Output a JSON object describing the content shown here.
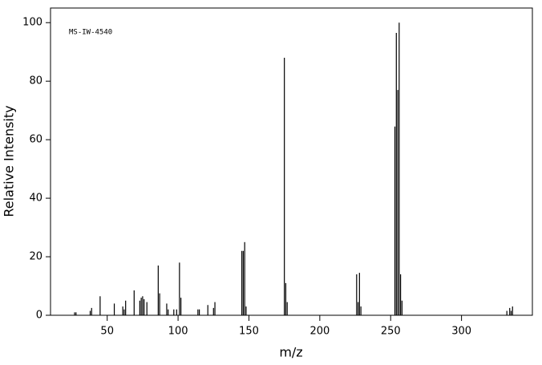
{
  "chart_data": {
    "type": "bar",
    "annotation": "MS-IW-4540",
    "xlabel": "m/z",
    "ylabel": "Relative Intensity",
    "color": "#000000",
    "x": [
      27,
      28,
      38,
      39,
      45,
      55,
      61,
      62,
      63,
      69,
      73,
      74,
      75,
      76,
      78,
      86,
      87,
      92,
      93,
      97,
      99,
      101,
      102,
      114,
      115,
      121,
      125,
      126,
      145,
      146,
      147,
      148,
      175,
      176,
      177,
      226,
      227,
      228,
      229,
      253,
      254,
      255,
      256,
      257,
      258,
      332,
      334,
      335,
      336
    ],
    "values": [
      1,
      1,
      1.5,
      2.5,
      6.5,
      4,
      3,
      2,
      5,
      8.5,
      5,
      6,
      6.5,
      5.5,
      4.5,
      17,
      7.5,
      4,
      2,
      2,
      2,
      18,
      6,
      2,
      2,
      3.5,
      2.5,
      4.5,
      22,
      22,
      25,
      3,
      88,
      11,
      4.5,
      14,
      4.5,
      14.5,
      3,
      64.5,
      96.5,
      77,
      100,
      14,
      5,
      1.5,
      2.5,
      1.5,
      3
    ],
    "xlim": [
      10,
      350
    ],
    "ylim": [
      0,
      105
    ],
    "xticks": [
      50,
      100,
      150,
      200,
      250,
      300
    ],
    "yticks": [
      0,
      20,
      40,
      60,
      80,
      100
    ]
  }
}
